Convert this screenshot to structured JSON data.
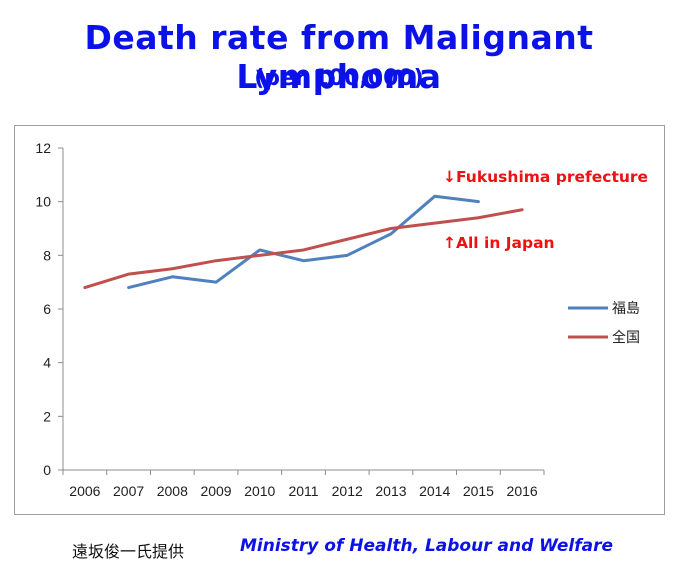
{
  "header": {
    "title": "Death rate from Malignant Lymphoma",
    "subtitle": "(per 100,000)"
  },
  "chart_data": {
    "type": "line",
    "x": [
      2006,
      2007,
      2008,
      2009,
      2010,
      2011,
      2012,
      2013,
      2014,
      2015,
      2016
    ],
    "ylim": [
      0,
      12
    ],
    "yticks": [
      0,
      2,
      4,
      6,
      8,
      10,
      12
    ],
    "grid": "horizontal",
    "legend_position": "right",
    "series": [
      {
        "name": "福島",
        "color": "#4f81bd",
        "points": [
          [
            2007,
            6.8
          ],
          [
            2008,
            7.2
          ],
          [
            2009,
            7.0
          ],
          [
            2010,
            8.2
          ],
          [
            2011,
            7.8
          ],
          [
            2012,
            8.0
          ],
          [
            2013,
            8.8
          ],
          [
            2014,
            10.2
          ],
          [
            2015,
            10.0
          ]
        ]
      },
      {
        "name": "全国",
        "color": "#c0504d",
        "points": [
          [
            2006,
            6.8
          ],
          [
            2007,
            7.3
          ],
          [
            2008,
            7.5
          ],
          [
            2009,
            7.8
          ],
          [
            2010,
            8.0
          ],
          [
            2011,
            8.2
          ],
          [
            2012,
            8.6
          ],
          [
            2013,
            9.0
          ],
          [
            2014,
            9.2
          ],
          [
            2015,
            9.4
          ],
          [
            2016,
            9.7
          ]
        ]
      }
    ],
    "annotations": [
      {
        "text": "↓Fukushima prefecture",
        "color": "#ee1111"
      },
      {
        "text": "↑All in Japan",
        "color": "#ee1111"
      }
    ]
  },
  "footer": {
    "credit_japanese": "遠坂俊一氏提供",
    "credit_english": "Ministry of Health, Labour and Welfare"
  }
}
